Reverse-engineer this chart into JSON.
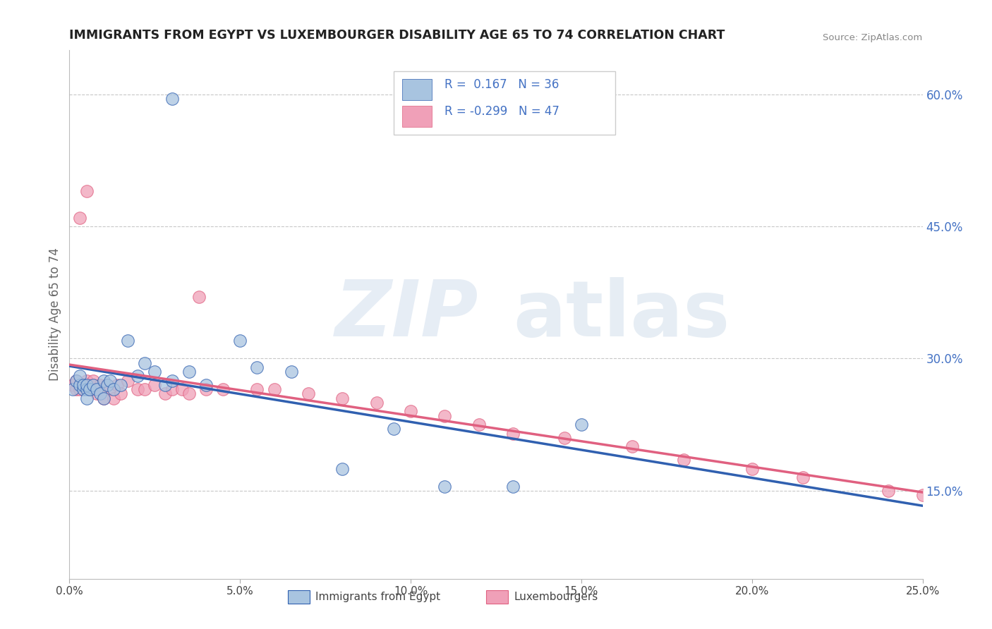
{
  "title": "IMMIGRANTS FROM EGYPT VS LUXEMBOURGER DISABILITY AGE 65 TO 74 CORRELATION CHART",
  "source": "Source: ZipAtlas.com",
  "ylabel": "Disability Age 65 to 74",
  "x_min": 0.0,
  "x_max": 0.25,
  "y_min": 0.05,
  "y_max": 0.65,
  "y_ticks_right": [
    0.15,
    0.3,
    0.45,
    0.6
  ],
  "y_tick_labels_right": [
    "15.0%",
    "30.0%",
    "45.0%",
    "60.0%"
  ],
  "grid_color": "#c8c8c8",
  "color_egypt": "#a8c4e0",
  "color_lux": "#f0a0b8",
  "line_color_egypt": "#3060b0",
  "line_color_lux": "#e06080",
  "legend_text_color": "#4472c4",
  "background_color": "#ffffff",
  "egypt_x": [
    0.001,
    0.002,
    0.003,
    0.003,
    0.004,
    0.004,
    0.005,
    0.005,
    0.005,
    0.006,
    0.007,
    0.008,
    0.009,
    0.01,
    0.01,
    0.011,
    0.012,
    0.013,
    0.015,
    0.017,
    0.02,
    0.022,
    0.025,
    0.028,
    0.03,
    0.035,
    0.04,
    0.05,
    0.055,
    0.065,
    0.08,
    0.095,
    0.11,
    0.13,
    0.15,
    0.03
  ],
  "egypt_y": [
    0.265,
    0.275,
    0.27,
    0.28,
    0.265,
    0.27,
    0.265,
    0.27,
    0.255,
    0.265,
    0.27,
    0.265,
    0.26,
    0.275,
    0.255,
    0.27,
    0.275,
    0.265,
    0.27,
    0.32,
    0.28,
    0.295,
    0.285,
    0.27,
    0.275,
    0.285,
    0.27,
    0.32,
    0.29,
    0.285,
    0.175,
    0.22,
    0.155,
    0.155,
    0.225,
    0.595
  ],
  "lux_x": [
    0.001,
    0.002,
    0.002,
    0.003,
    0.003,
    0.004,
    0.005,
    0.005,
    0.006,
    0.007,
    0.007,
    0.008,
    0.009,
    0.009,
    0.01,
    0.011,
    0.012,
    0.013,
    0.014,
    0.015,
    0.017,
    0.02,
    0.022,
    0.025,
    0.028,
    0.03,
    0.033,
    0.038,
    0.04,
    0.045,
    0.055,
    0.06,
    0.07,
    0.08,
    0.09,
    0.1,
    0.11,
    0.12,
    0.13,
    0.145,
    0.165,
    0.18,
    0.2,
    0.215,
    0.24,
    0.25,
    0.035
  ],
  "lux_y": [
    0.27,
    0.265,
    0.275,
    0.265,
    0.46,
    0.27,
    0.49,
    0.275,
    0.265,
    0.27,
    0.275,
    0.26,
    0.265,
    0.27,
    0.255,
    0.27,
    0.265,
    0.255,
    0.27,
    0.26,
    0.275,
    0.265,
    0.265,
    0.27,
    0.26,
    0.265,
    0.265,
    0.37,
    0.265,
    0.265,
    0.265,
    0.265,
    0.26,
    0.255,
    0.25,
    0.24,
    0.235,
    0.225,
    0.215,
    0.21,
    0.2,
    0.185,
    0.175,
    0.165,
    0.15,
    0.145,
    0.26
  ]
}
